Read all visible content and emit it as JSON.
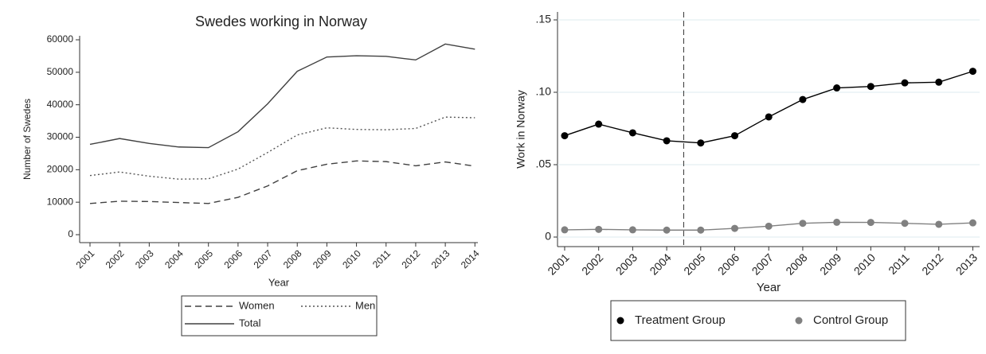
{
  "chart_data": [
    {
      "type": "line",
      "title": "Swedes working in Norway",
      "xlabel": "Year",
      "ylabel": "Number of Swedes",
      "x": [
        2001,
        2002,
        2003,
        2004,
        2005,
        2006,
        2007,
        2008,
        2009,
        2010,
        2011,
        2012,
        2013,
        2014
      ],
      "xlim": [
        2000.65,
        2014.1
      ],
      "ylim": [
        -2450,
        61230
      ],
      "yticks": [
        0,
        10000,
        20000,
        30000,
        40000,
        50000,
        60000
      ],
      "grid": false,
      "markers": false,
      "legend": "bottom",
      "series": [
        {
          "name": "Women",
          "color": "#404040",
          "dash": "dashed",
          "values": [
            9600,
            10300,
            10200,
            9900,
            9600,
            11500,
            15000,
            19700,
            21700,
            22700,
            22500,
            21200,
            22400,
            21100
          ]
        },
        {
          "name": "Men",
          "color": "#555555",
          "dash": "dotted",
          "values": [
            18200,
            19300,
            18000,
            17100,
            17200,
            20200,
            25300,
            30700,
            32900,
            32400,
            32300,
            32700,
            36200,
            36000
          ]
        },
        {
          "name": "Total",
          "color": "#404040",
          "dash": "solid",
          "values": [
            27800,
            29600,
            28100,
            27000,
            26800,
            31700,
            40300,
            50300,
            54700,
            55100,
            54900,
            53800,
            58700,
            57100
          ]
        }
      ]
    },
    {
      "type": "line",
      "xlabel": "Year",
      "ylabel": "Work in Norway",
      "x": [
        2001,
        2002,
        2003,
        2004,
        2005,
        2006,
        2007,
        2008,
        2009,
        2010,
        2011,
        2012,
        2013
      ],
      "xlim": [
        2000.79,
        2013.2
      ],
      "ylim": [
        -0.0066,
        0.1555
      ],
      "yticks": [
        {
          "value": 0,
          "label": "0"
        },
        {
          "value": 0.05,
          "label": ".05"
        },
        {
          "value": 0.1,
          "label": ".10"
        },
        {
          "value": 0.15,
          "label": ".15"
        }
      ],
      "grid": true,
      "markers": true,
      "xline": 2004.5,
      "legend": "bottom",
      "series": [
        {
          "name": "Treatment Group",
          "color": "#000000",
          "dash": "solid",
          "values": [
            0.07,
            0.078,
            0.072,
            0.0665,
            0.065,
            0.07,
            0.083,
            0.095,
            0.103,
            0.104,
            0.1065,
            0.107,
            0.1145
          ]
        },
        {
          "name": "Control Group",
          "color": "#808080",
          "dash": "solid",
          "values": [
            0.005,
            0.0053,
            0.005,
            0.0048,
            0.0048,
            0.006,
            0.0075,
            0.0095,
            0.0102,
            0.0101,
            0.0095,
            0.0088,
            0.0098
          ]
        }
      ]
    }
  ]
}
